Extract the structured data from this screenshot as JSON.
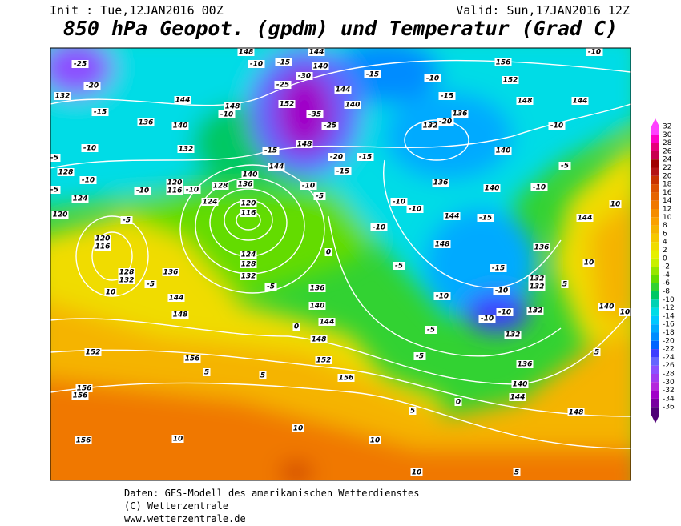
{
  "header": {
    "init": "Init : Tue,12JAN2016 00Z",
    "valid": "Valid: Sun,17JAN2016 12Z",
    "title": "850 hPa Geopot. (gpdm) und Temperatur (Grad C)"
  },
  "footer": {
    "line1": "Daten: GFS-Modell des amerikanischen Wetterdienstes",
    "line2": "(C) Wetterzentrale",
    "line3": "www.wetterzentrale.de"
  },
  "colorbar": {
    "levels": [
      32,
      30,
      28,
      26,
      24,
      22,
      20,
      18,
      16,
      14,
      12,
      10,
      8,
      6,
      4,
      2,
      0,
      -2,
      -4,
      -6,
      -8,
      -10,
      -12,
      -14,
      -16,
      -18,
      -20,
      -22,
      -24,
      -26,
      -28,
      -30,
      -32,
      -34,
      -36
    ],
    "colors": [
      "#ff40ff",
      "#ff00c8",
      "#e6007a",
      "#c80050",
      "#a00000",
      "#b41414",
      "#c83200",
      "#dc5000",
      "#e66400",
      "#f07800",
      "#f58c00",
      "#faa000",
      "#f5b400",
      "#f5c800",
      "#f0dc00",
      "#e6f000",
      "#c8f000",
      "#96e600",
      "#64dc00",
      "#32d232",
      "#00c864",
      "#00d2b4",
      "#00dce6",
      "#00c8ff",
      "#00aaff",
      "#008cff",
      "#0064ff",
      "#3c3cff",
      "#6464ff",
      "#8c50ff",
      "#a03cf0",
      "#b428dc",
      "#a000c8",
      "#7800a0",
      "#500078"
    ]
  },
  "contour_labels": [
    "-25",
    "-20",
    "132",
    "-15",
    "144",
    "136",
    "140",
    "132",
    "-10",
    "-5",
    "128",
    "-10",
    "124",
    "120",
    "-10",
    "120",
    "116",
    "-10",
    "128",
    "124",
    "136",
    "140",
    "120",
    "116",
    "-5",
    "120",
    "116",
    "128",
    "132",
    "-5",
    "136",
    "10",
    "144",
    "148",
    "124",
    "128",
    "132",
    "-5",
    "136",
    "140",
    "0",
    "0",
    "144",
    "148",
    "152",
    "156",
    "5",
    "152",
    "156",
    "5",
    "156",
    "156",
    "156",
    "10",
    "10",
    "10",
    "10",
    "5",
    "5",
    "0",
    "144",
    "148",
    "140",
    "136",
    "5",
    "10",
    "140",
    "132",
    "-10",
    "-10",
    "132",
    "-10",
    "-5",
    "-5",
    "-5",
    "148",
    "144",
    "-15",
    "140",
    "-10",
    "-5",
    "140",
    "136",
    "132",
    "-20",
    "136",
    "-15",
    "-10",
    "144",
    "148",
    "152",
    "156",
    "-10",
    "-10",
    "-15",
    "140",
    "144",
    "140",
    "144",
    "-25",
    "-30",
    "152",
    "-35",
    "-25",
    "148",
    "-20",
    "-15",
    "-15",
    "-15",
    "144",
    "-10",
    "-5",
    "-10",
    "-10",
    "-10",
    "144",
    "10",
    "136",
    "-15",
    "-10",
    "132",
    "132",
    "5",
    "10",
    "148",
    "-10",
    "-15",
    "148",
    "-10",
    "-5"
  ]
}
